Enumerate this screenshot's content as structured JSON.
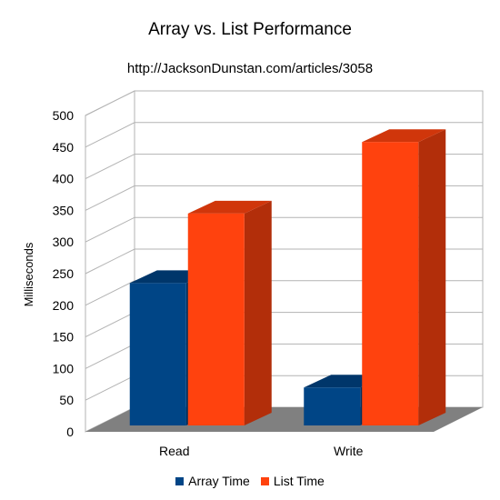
{
  "chart_data": {
    "type": "bar",
    "title": "Array vs. List Performance",
    "subtitle": "http://JacksonDunstan.com/articles/3058",
    "ylabel": "Milliseconds",
    "xlabel": "",
    "categories": [
      "Read",
      "Write"
    ],
    "series": [
      {
        "name": "Array Time",
        "values": [
          225,
          60
        ],
        "color": "#004586",
        "side_color": "#00305e",
        "top_color": "#00366a"
      },
      {
        "name": "List Time",
        "values": [
          335,
          448
        ],
        "color": "#ff420e",
        "side_color": "#b22e0a",
        "top_color": "#d0360b"
      }
    ],
    "ylim": [
      0,
      500
    ],
    "yticks": [
      0,
      50,
      100,
      150,
      200,
      250,
      300,
      350,
      400,
      450,
      500
    ],
    "grid": true,
    "three_d": true,
    "legend_position": "bottom",
    "floor_color": "#808080",
    "wall_color": "#ffffff"
  }
}
